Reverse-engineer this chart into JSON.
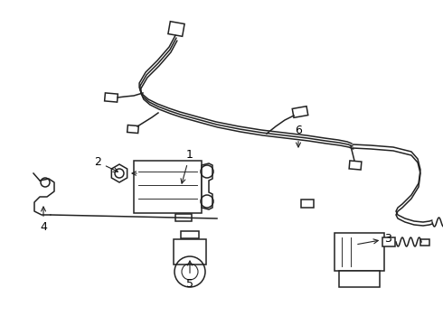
{
  "background_color": "#ffffff",
  "line_color": "#222222",
  "label_color": "#000000",
  "figsize": [
    4.9,
    3.6
  ],
  "dpi": 100
}
